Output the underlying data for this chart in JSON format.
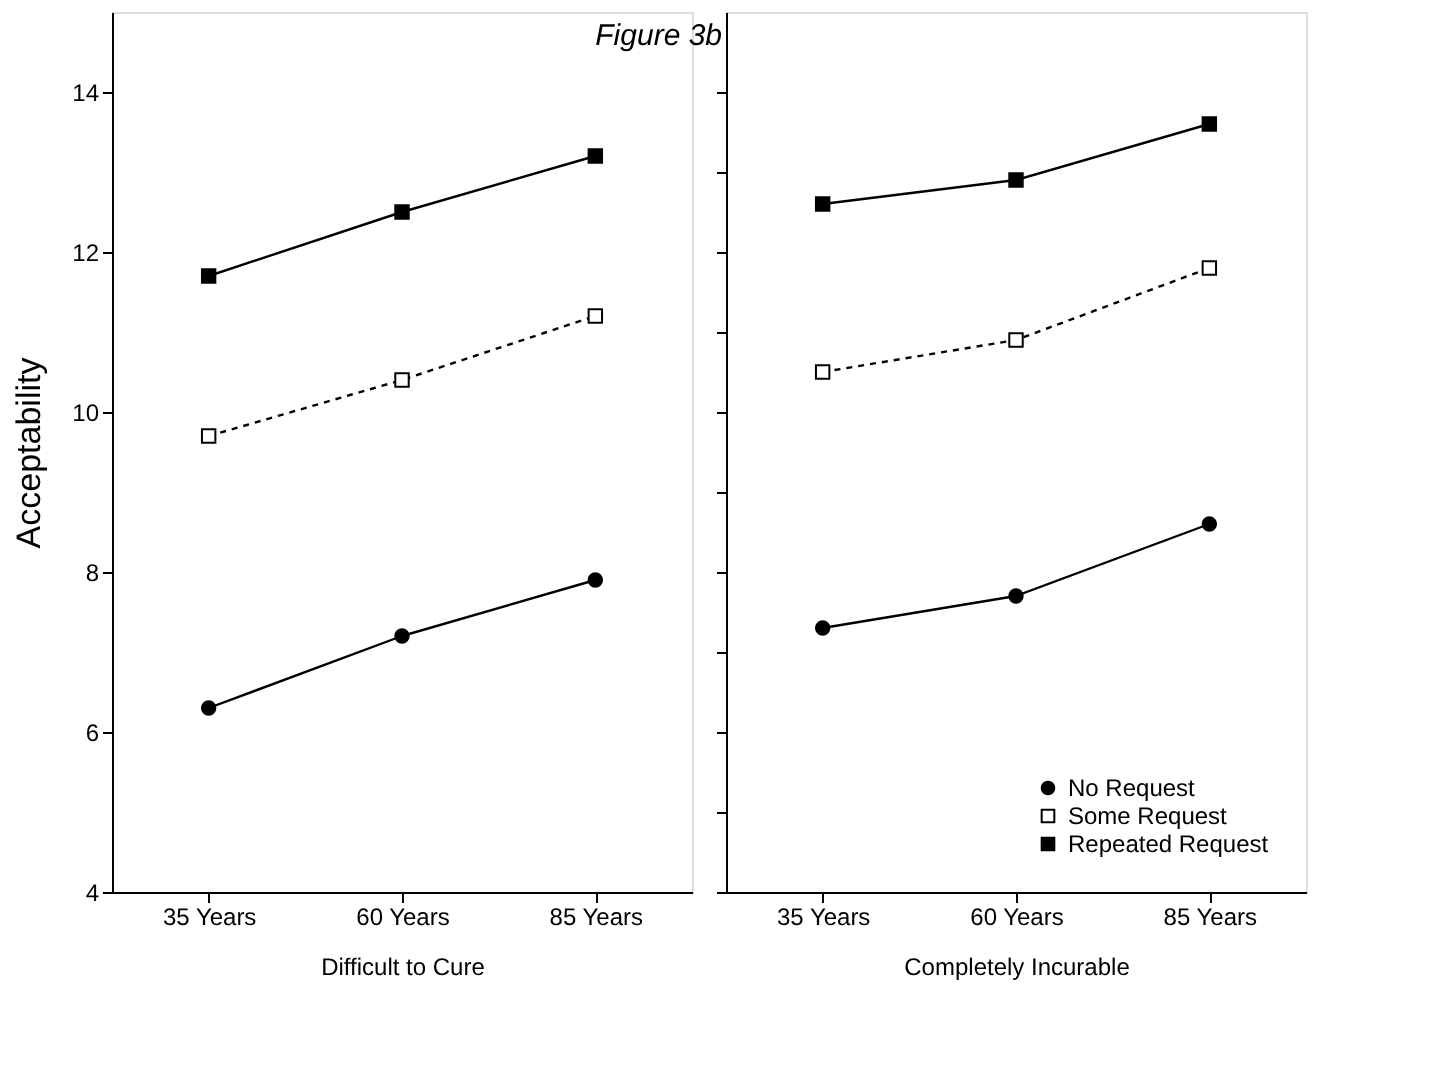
{
  "chart_data": [
    {
      "type": "line",
      "title": "Figure 3b",
      "xlabel": "Difficult to Cure",
      "ylabel": "Acceptability",
      "categories": [
        "35 Years",
        "60 Years",
        "85 Years"
      ],
      "series": [
        {
          "color": "#000000",
          "marker": "circle",
          "line_style": "solid",
          "values": [
            6.3,
            7.2,
            7.9
          ]
        },
        {
          "color": "#000000",
          "marker": "square",
          "line_style": "dashed",
          "values": [
            9.7,
            10.4,
            11.2
          ]
        },
        {
          "color": "#000000",
          "marker": "square",
          "line_style": "solid",
          "values": [
            11.7,
            12.5,
            13.2
          ]
        }
      ],
      "ylim": [
        4,
        15
      ],
      "yticks": [
        4,
        6,
        8,
        10,
        12,
        14
      ],
      "grid": false,
      "legend": false
    },
    {
      "type": "line",
      "xlabel": "Completely Incurable",
      "categories": [
        "35 Years",
        "60 Years",
        "85 Years"
      ],
      "series": [
        {
          "name": "No Request",
          "color": "#000000",
          "marker": "circle",
          "line_style": "solid",
          "values": [
            7.3,
            7.7,
            8.6
          ]
        },
        {
          "name": "Some Request",
          "color": "#000000",
          "marker": "square",
          "line_style": "dashed",
          "values": [
            10.5,
            10.9,
            11.8
          ]
        },
        {
          "name": "Repeated Request",
          "color": "#000000",
          "marker": "square",
          "line_style": "solid",
          "values": [
            12.6,
            12.9,
            13.6
          ]
        }
      ],
      "ylim": [
        4,
        15
      ],
      "yticks": [
        {
          "value": 4,
          "label": null
        },
        {
          "value": 5,
          "label": null
        },
        {
          "value": 6,
          "label": null
        },
        {
          "value": 7,
          "label": null
        },
        {
          "value": 8,
          "label": null
        },
        {
          "value": 9,
          "label": null
        },
        {
          "value": 10,
          "label": null
        },
        {
          "value": 11,
          "label": null
        },
        {
          "value": 12,
          "label": null
        },
        {
          "value": 13,
          "label": null
        },
        {
          "value": 14,
          "label": null
        }
      ],
      "tick_labels": "x",
      "grid": false,
      "legend": "bottom right"
    }
  ]
}
